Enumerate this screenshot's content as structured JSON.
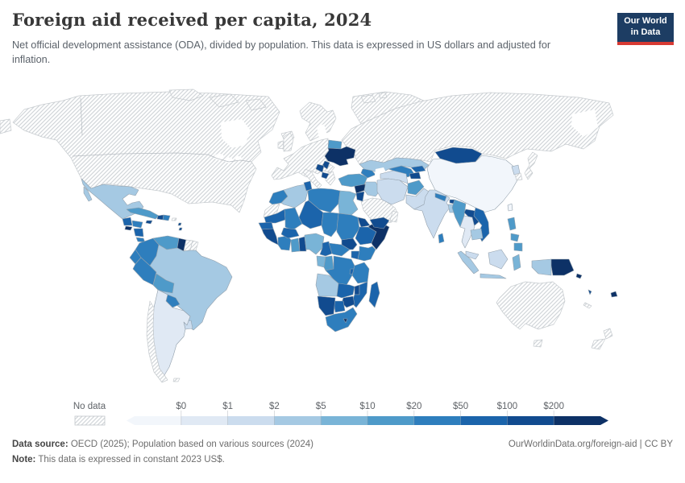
{
  "header": {
    "title": "Foreign aid received per capita, 2024",
    "subtitle": "Net official development assistance (ODA), divided by population. This data is expressed in US dollars and adjusted for inflation.",
    "logo": {
      "line1": "Our World",
      "line2": "in Data",
      "bg": "#1d3d63",
      "accent": "#d73a33"
    }
  },
  "legend": {
    "no_data_label": "No data",
    "tick_labels": [
      "$0",
      "$1",
      "$2",
      "$5",
      "$10",
      "$20",
      "$50",
      "$100",
      "$200"
    ],
    "palette": [
      "#f2f6fb",
      "#e0e9f4",
      "#cbdcee",
      "#a5c9e3",
      "#79b4d7",
      "#4e9ac9",
      "#2e7ebd",
      "#1b64ab",
      "#114b8f",
      "#0d3166"
    ]
  },
  "map": {
    "border_color": "#93a1ad",
    "hatch_line_color": "#d2d6d9",
    "regions": {
      "bering-fragment": "x",
      "north-america": "x",
      "arctic-islands-a": "x",
      "arctic-islands-b": "x",
      "arctic-islands-c": "x",
      "greenland": "x",
      "iceland": "x",
      "svalbard-a": "x",
      "svalbard-b": "x",
      "europe": "x",
      "uk": "x",
      "ireland": "x",
      "scandinavia": "x",
      "italy": "x",
      "greece": "x",
      "russia": "x",
      "japan": "x",
      "south-korea": "x",
      "australia": "x",
      "tasmania": "x",
      "new-zealand-north": "x",
      "new-zealand-south": "x",
      "new-caledonia": "x",
      "saudi-arabia": "x",
      "oman": "x",
      "chile": "x",
      "falkland-islands": "x",
      "suriname": "x",
      "french-guiana": "x",
      "western-sahara": "x",
      "puerto-rico": "x",
      "mexico": 3,
      "mexico-baja": 3,
      "guatemala": 7,
      "el-salvador": 9,
      "honduras": 6,
      "nicaragua": 7,
      "costa-rica": 6,
      "panama": 8,
      "cuba": 5,
      "jamaica": 8,
      "haiti": 8,
      "dominican-republic": 6,
      "lesser-antilles-a": 8,
      "lesser-antilles-b": 8,
      "colombia": 6,
      "venezuela": 5,
      "guyana": 9,
      "ecuador": 6,
      "peru": 6,
      "brazil": 3,
      "bolivia": 5,
      "paraguay": 6,
      "uruguay": 2,
      "argentina": 1,
      "morocco": 6,
      "algeria": 3,
      "tunisia": 7,
      "libya": 6,
      "egypt": 4,
      "mauritania": 7,
      "mali": 6,
      "niger": 7,
      "chad": 6,
      "sudan": 6,
      "eritrea": 8,
      "ethiopia": 7,
      "somalia": 9,
      "senegal": 7,
      "guinea": 8,
      "cote-divoire": 6,
      "ghana": 5,
      "burkina-faso": 7,
      "togo-benin": 8,
      "nigeria": 4,
      "cameroon": 7,
      "central-african-republic": 6,
      "south-sudan": 8,
      "uganda": 7,
      "kenya": 6,
      "gabon": 4,
      "congo": 5,
      "drc": 6,
      "rwanda-burundi": 7,
      "tanzania": 6,
      "angola": 3,
      "zambia": 7,
      "malawi": 8,
      "mozambique": 7,
      "zimbabwe": 8,
      "botswana": 7,
      "namibia": 8,
      "south-africa": 6,
      "lesotho": 9,
      "madagascar": 7,
      "turkey": 5,
      "syria": 9,
      "jordan": 8,
      "iraq": 3,
      "yemen": 8,
      "caucasus": 6,
      "iran": 2,
      "afghanistan": 5,
      "pakistan": 2,
      "kazakhstan": 3,
      "turkmenistan": 2,
      "uzbekistan": 6,
      "kyrgyzstan": 7,
      "tajikistan": 8,
      "mongolia": 8,
      "china": 0,
      "north-korea": 2,
      "taiwan": 0,
      "india": 2,
      "nepal": 6,
      "bhutan": 8,
      "bangladesh": 3,
      "sri-lanka": 6,
      "myanmar": 5,
      "thailand": 1,
      "laos": 8,
      "vietnam": 7,
      "cambodia": 3,
      "malaysia": 2,
      "sumatra": 3,
      "borneo": 2,
      "java": 3,
      "sulawesi": 4,
      "west-papua": 3,
      "philippines-luzon": 5,
      "philippines-visayas": 5,
      "philippines-mindanao": 5,
      "papua-new-guinea": 9,
      "solomon-islands": 9,
      "vanuatu": 8,
      "fiji": 9,
      "belarus": 5,
      "ukraine": 9,
      "moldova": 8,
      "serbia-bosnia": 8,
      "albania-macedonia": 8
    }
  },
  "footer": {
    "source_label": "Data source:",
    "source_text": " OECD (2025); Population based on various sources (2024)",
    "note_label": "Note:",
    "note_text": " This data is expressed in constant 2023 US$.",
    "attribution": "OurWorldinData.org/foreign-aid | CC BY"
  }
}
